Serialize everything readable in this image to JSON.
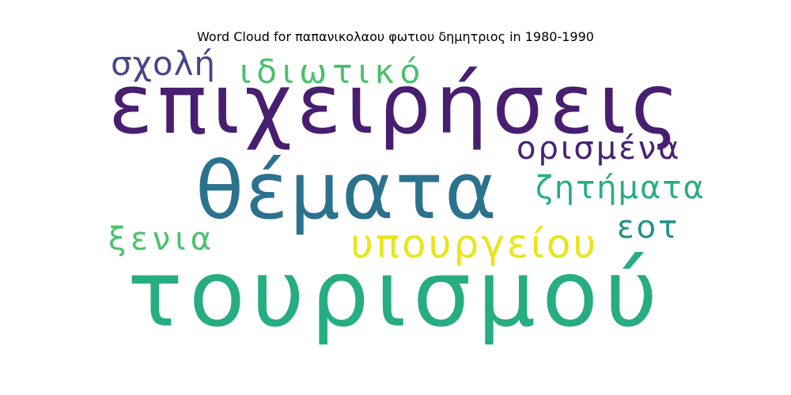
{
  "title": "Word Cloud for παπανικολαου φωτιου δημητριος in 1980-1990",
  "words": [
    {
      "id": "w-epix",
      "text": "επιχειρήσεις",
      "color": "#481f70"
    },
    {
      "id": "w-tour",
      "text": "τουρισμού",
      "color": "#26ad81"
    },
    {
      "id": "w-them",
      "text": "θέματα",
      "color": "#2c728e"
    },
    {
      "id": "w-ypou",
      "text": "υπουργείου",
      "color": "#e9e51a"
    },
    {
      "id": "w-orism",
      "text": "ορισμένα",
      "color": "#482173"
    },
    {
      "id": "w-zit",
      "text": "ζητήματα",
      "color": "#29af7f"
    },
    {
      "id": "w-idiot",
      "text": "ιδιωτικό",
      "color": "#4ac16d"
    },
    {
      "id": "w-sxol",
      "text": "σχολή",
      "color": "#46478a"
    },
    {
      "id": "w-xen",
      "text": "ξενια",
      "color": "#4ac16d"
    },
    {
      "id": "w-eot",
      "text": "εοτ",
      "color": "#21918c"
    }
  ]
}
